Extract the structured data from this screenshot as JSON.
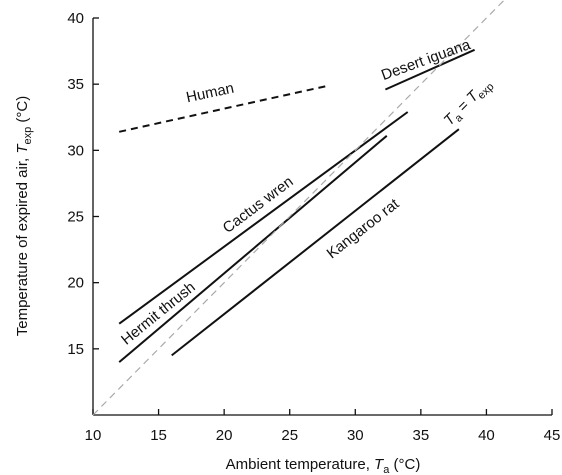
{
  "chart_data": {
    "type": "line",
    "xlabel": "Ambient temperature, T_a (°C)",
    "xlabel_parts": {
      "main": "Ambient temperature, ",
      "var": "T",
      "sub": "a",
      "unit": " (°C)"
    },
    "ylabel": "Temperature of expired air, T_exp (°C)",
    "ylabel_parts": {
      "main": "Temperature of expired air, ",
      "var": "T",
      "sub": "exp",
      "unit": " (°C)"
    },
    "xlim": [
      10,
      45
    ],
    "ylim": [
      10,
      40
    ],
    "xticks": [
      10,
      15,
      20,
      25,
      30,
      35,
      40,
      45
    ],
    "yticks": [
      15,
      20,
      25,
      30,
      35,
      40
    ],
    "grid": false,
    "legend": "none",
    "series": [
      {
        "name": "Human",
        "style": "dashed",
        "color": "#111111",
        "x": [
          12,
          28
        ],
        "y": [
          31.4,
          34.9
        ]
      },
      {
        "name": "Desert iguana",
        "style": "solid",
        "color": "#111111",
        "x": [
          32.3,
          39.1
        ],
        "y": [
          34.6,
          37.6
        ]
      },
      {
        "name": "Cactus wren",
        "style": "solid",
        "color": "#111111",
        "x": [
          12,
          34
        ],
        "y": [
          16.9,
          32.9
        ]
      },
      {
        "name": "Hermit thrush",
        "style": "solid",
        "color": "#111111",
        "x": [
          12,
          32.4
        ],
        "y": [
          14,
          31.1
        ]
      },
      {
        "name": "Kangaroo rat",
        "style": "solid",
        "color": "#111111",
        "x": [
          16,
          37.9
        ],
        "y": [
          14.5,
          31.6
        ]
      },
      {
        "name": "T_a = T_exp",
        "style": "dashed-light",
        "color": "#aaaaaa",
        "x": [
          10,
          42
        ],
        "y": [
          10,
          42
        ]
      }
    ],
    "annotations": [
      {
        "text": "Human",
        "x": 19,
        "y": 34,
        "rotation": -12
      },
      {
        "text": "Desert iguana",
        "x": 35.5,
        "y": 36.5,
        "rotation": -20
      },
      {
        "text": "Cactus wren",
        "x": 22.8,
        "y": 25.6,
        "rotation": -37
      },
      {
        "text": "Hermit thrush",
        "x": 15.2,
        "y": 17.4,
        "rotation": -39
      },
      {
        "text": "Kangaroo rat",
        "x": 30.8,
        "y": 23.8,
        "rotation": -38
      }
    ],
    "identity_label": {
      "var1": "T",
      "sub1": "a",
      "eq": " = ",
      "var2": "T",
      "sub2": "exp",
      "x": 38.8,
      "y": 33.4,
      "rotation": -45
    }
  }
}
